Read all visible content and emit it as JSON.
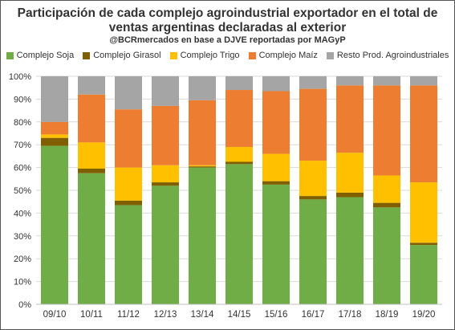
{
  "title_line1": "Participación de cada complejo agroindustrial exportador en el total de",
  "title_line2": "ventas argentinas declaradas al exterior",
  "subtitle": "@BCRmercados en base a DJVE reportadas por MAGyP",
  "chart_data": {
    "type": "bar",
    "stacked": true,
    "categories": [
      "09/10",
      "10/11",
      "11/12",
      "12/13",
      "13/14",
      "14/15",
      "15/16",
      "16/17",
      "17/18",
      "18/19",
      "19/20"
    ],
    "yticks": [
      "0%",
      "10%",
      "20%",
      "30%",
      "40%",
      "50%",
      "60%",
      "70%",
      "80%",
      "90%",
      "100%"
    ],
    "ylim": [
      0,
      100
    ],
    "grid": true,
    "legend_position": "top",
    "series": [
      {
        "name": "Complejo Soja",
        "color": "#70AD47",
        "values": [
          69.5,
          57.5,
          43.5,
          52,
          60,
          61.5,
          52.5,
          46,
          47,
          42.5,
          26
        ]
      },
      {
        "name": "Complejo Girasol",
        "color": "#7F5F00",
        "values": [
          3.5,
          2,
          2,
          1.5,
          0.5,
          1,
          1.5,
          1.5,
          2,
          2,
          1
        ]
      },
      {
        "name": "Complejo Trigo",
        "color": "#FFC000",
        "values": [
          1.5,
          11.5,
          14.5,
          7.5,
          0.5,
          6.5,
          12,
          15.5,
          17.5,
          12,
          26.5
        ]
      },
      {
        "name": "Complejo Maíz",
        "color": "#ED7D31",
        "values": [
          5.5,
          21,
          25.5,
          26,
          28.5,
          25,
          27.5,
          31.5,
          29.5,
          39.5,
          42.5
        ]
      },
      {
        "name": "Resto Prod. Agroindustriales",
        "color": "#A5A5A5",
        "values": [
          20,
          8,
          14.5,
          13,
          10.5,
          6,
          6.5,
          5.5,
          4,
          4,
          4
        ]
      }
    ]
  }
}
